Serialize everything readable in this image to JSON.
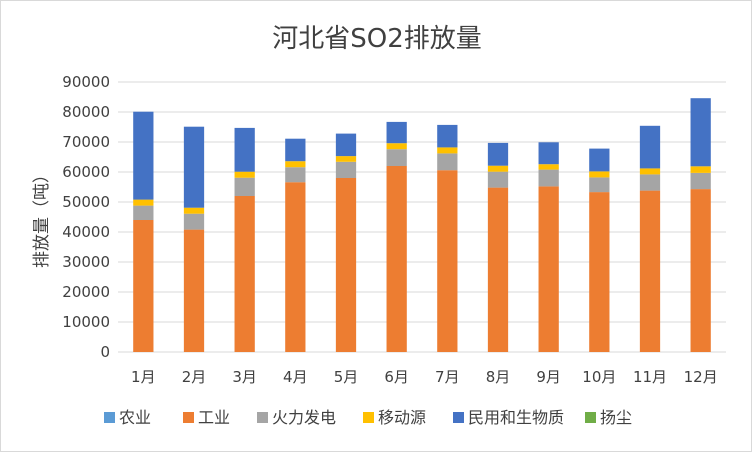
{
  "chart_data": {
    "type": "bar",
    "stacked": true,
    "title": "河北省SO2排放量",
    "xlabel": "",
    "ylabel": "排放量（吨）",
    "ylim": [
      0,
      90000
    ],
    "ytick_step": 10000,
    "yticks": [
      "0",
      "10000",
      "20000",
      "30000",
      "40000",
      "50000",
      "60000",
      "70000",
      "80000",
      "90000"
    ],
    "grid": true,
    "legend_position": "bottom",
    "categories": [
      "1月",
      "2月",
      "3月",
      "4月",
      "5月",
      "6月",
      "7月",
      "8月",
      "9月",
      "10月",
      "11月",
      "12月"
    ],
    "series": [
      {
        "name": "农业",
        "color": "#5b9bd5",
        "values": [
          0,
          0,
          0,
          0,
          0,
          0,
          0,
          0,
          0,
          0,
          0,
          0
        ]
      },
      {
        "name": "工业",
        "color": "#ed7d31",
        "values": [
          44000,
          40800,
          52000,
          56600,
          58000,
          62000,
          60600,
          54800,
          55200,
          53300,
          53800,
          54300
        ]
      },
      {
        "name": "火力发电",
        "color": "#a5a5a5",
        "values": [
          4800,
          5300,
          6100,
          5000,
          5400,
          5600,
          5600,
          5300,
          5600,
          4900,
          5400,
          5400
        ]
      },
      {
        "name": "移动源",
        "color": "#ffc000",
        "values": [
          2000,
          2000,
          2000,
          2000,
          1900,
          2000,
          2000,
          2000,
          1800,
          2000,
          2000,
          2200
        ]
      },
      {
        "name": "民用和生物质",
        "color": "#4472c4",
        "values": [
          29300,
          27000,
          14600,
          7500,
          7500,
          7100,
          7500,
          7600,
          7300,
          7600,
          14200,
          22700
        ]
      },
      {
        "name": "扬尘",
        "color": "#70ad47",
        "values": [
          0,
          0,
          0,
          0,
          0,
          0,
          0,
          0,
          0,
          0,
          0,
          0
        ]
      }
    ]
  }
}
